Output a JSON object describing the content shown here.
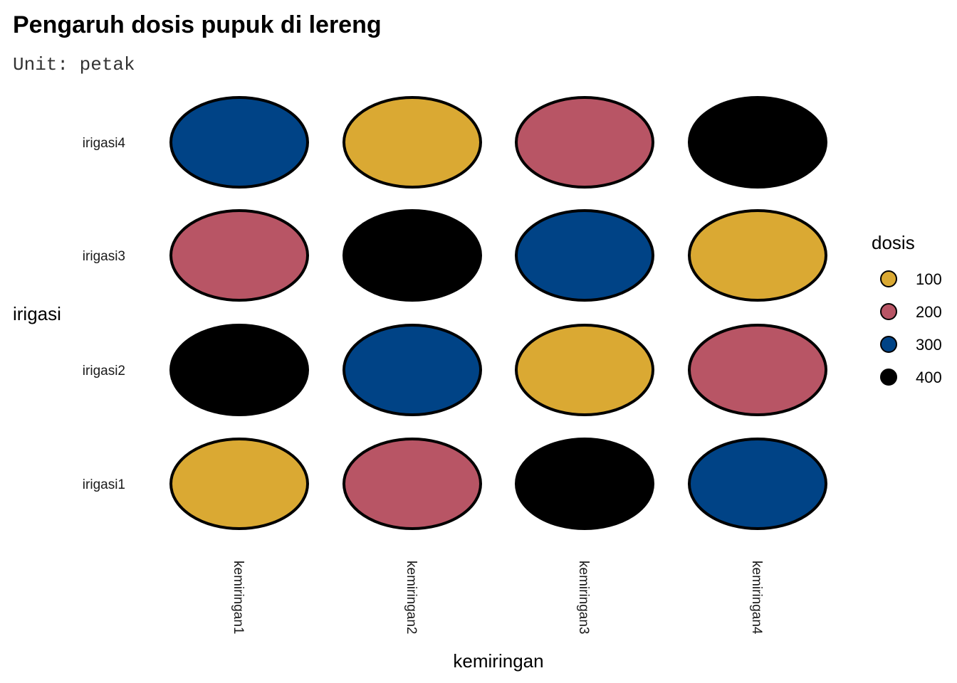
{
  "chart_data": {
    "type": "heatmap",
    "title": "Pengaruh dosis pupuk di lereng",
    "subtitle": "Unit: petak",
    "xlabel": "kemiringan",
    "ylabel": "irigasi",
    "x_categories": [
      "kemiringan1",
      "kemiringan2",
      "kemiringan3",
      "kemiringan4"
    ],
    "y_categories": [
      "irigasi1",
      "irigasi2",
      "irigasi3",
      "irigasi4"
    ],
    "cells": [
      {
        "x": "kemiringan1",
        "y": "irigasi1",
        "dosis": 100
      },
      {
        "x": "kemiringan2",
        "y": "irigasi1",
        "dosis": 200
      },
      {
        "x": "kemiringan3",
        "y": "irigasi1",
        "dosis": 400
      },
      {
        "x": "kemiringan4",
        "y": "irigasi1",
        "dosis": 300
      },
      {
        "x": "kemiringan1",
        "y": "irigasi2",
        "dosis": 400
      },
      {
        "x": "kemiringan2",
        "y": "irigasi2",
        "dosis": 300
      },
      {
        "x": "kemiringan3",
        "y": "irigasi2",
        "dosis": 100
      },
      {
        "x": "kemiringan4",
        "y": "irigasi2",
        "dosis": 200
      },
      {
        "x": "kemiringan1",
        "y": "irigasi3",
        "dosis": 200
      },
      {
        "x": "kemiringan2",
        "y": "irigasi3",
        "dosis": 400
      },
      {
        "x": "kemiringan3",
        "y": "irigasi3",
        "dosis": 300
      },
      {
        "x": "kemiringan4",
        "y": "irigasi3",
        "dosis": 100
      },
      {
        "x": "kemiringan1",
        "y": "irigasi4",
        "dosis": 300
      },
      {
        "x": "kemiringan2",
        "y": "irigasi4",
        "dosis": 100
      },
      {
        "x": "kemiringan3",
        "y": "irigasi4",
        "dosis": 200
      },
      {
        "x": "kemiringan4",
        "y": "irigasi4",
        "dosis": 400
      }
    ],
    "legend": {
      "title": "dosis",
      "position": "right",
      "entries": [
        {
          "label": "100",
          "value": 100,
          "color": "#DAA933"
        },
        {
          "label": "200",
          "value": 200,
          "color": "#B85565"
        },
        {
          "label": "300",
          "value": 300,
          "color": "#004386"
        },
        {
          "label": "400",
          "value": 400,
          "color": "#000000"
        }
      ]
    },
    "grid": false
  }
}
